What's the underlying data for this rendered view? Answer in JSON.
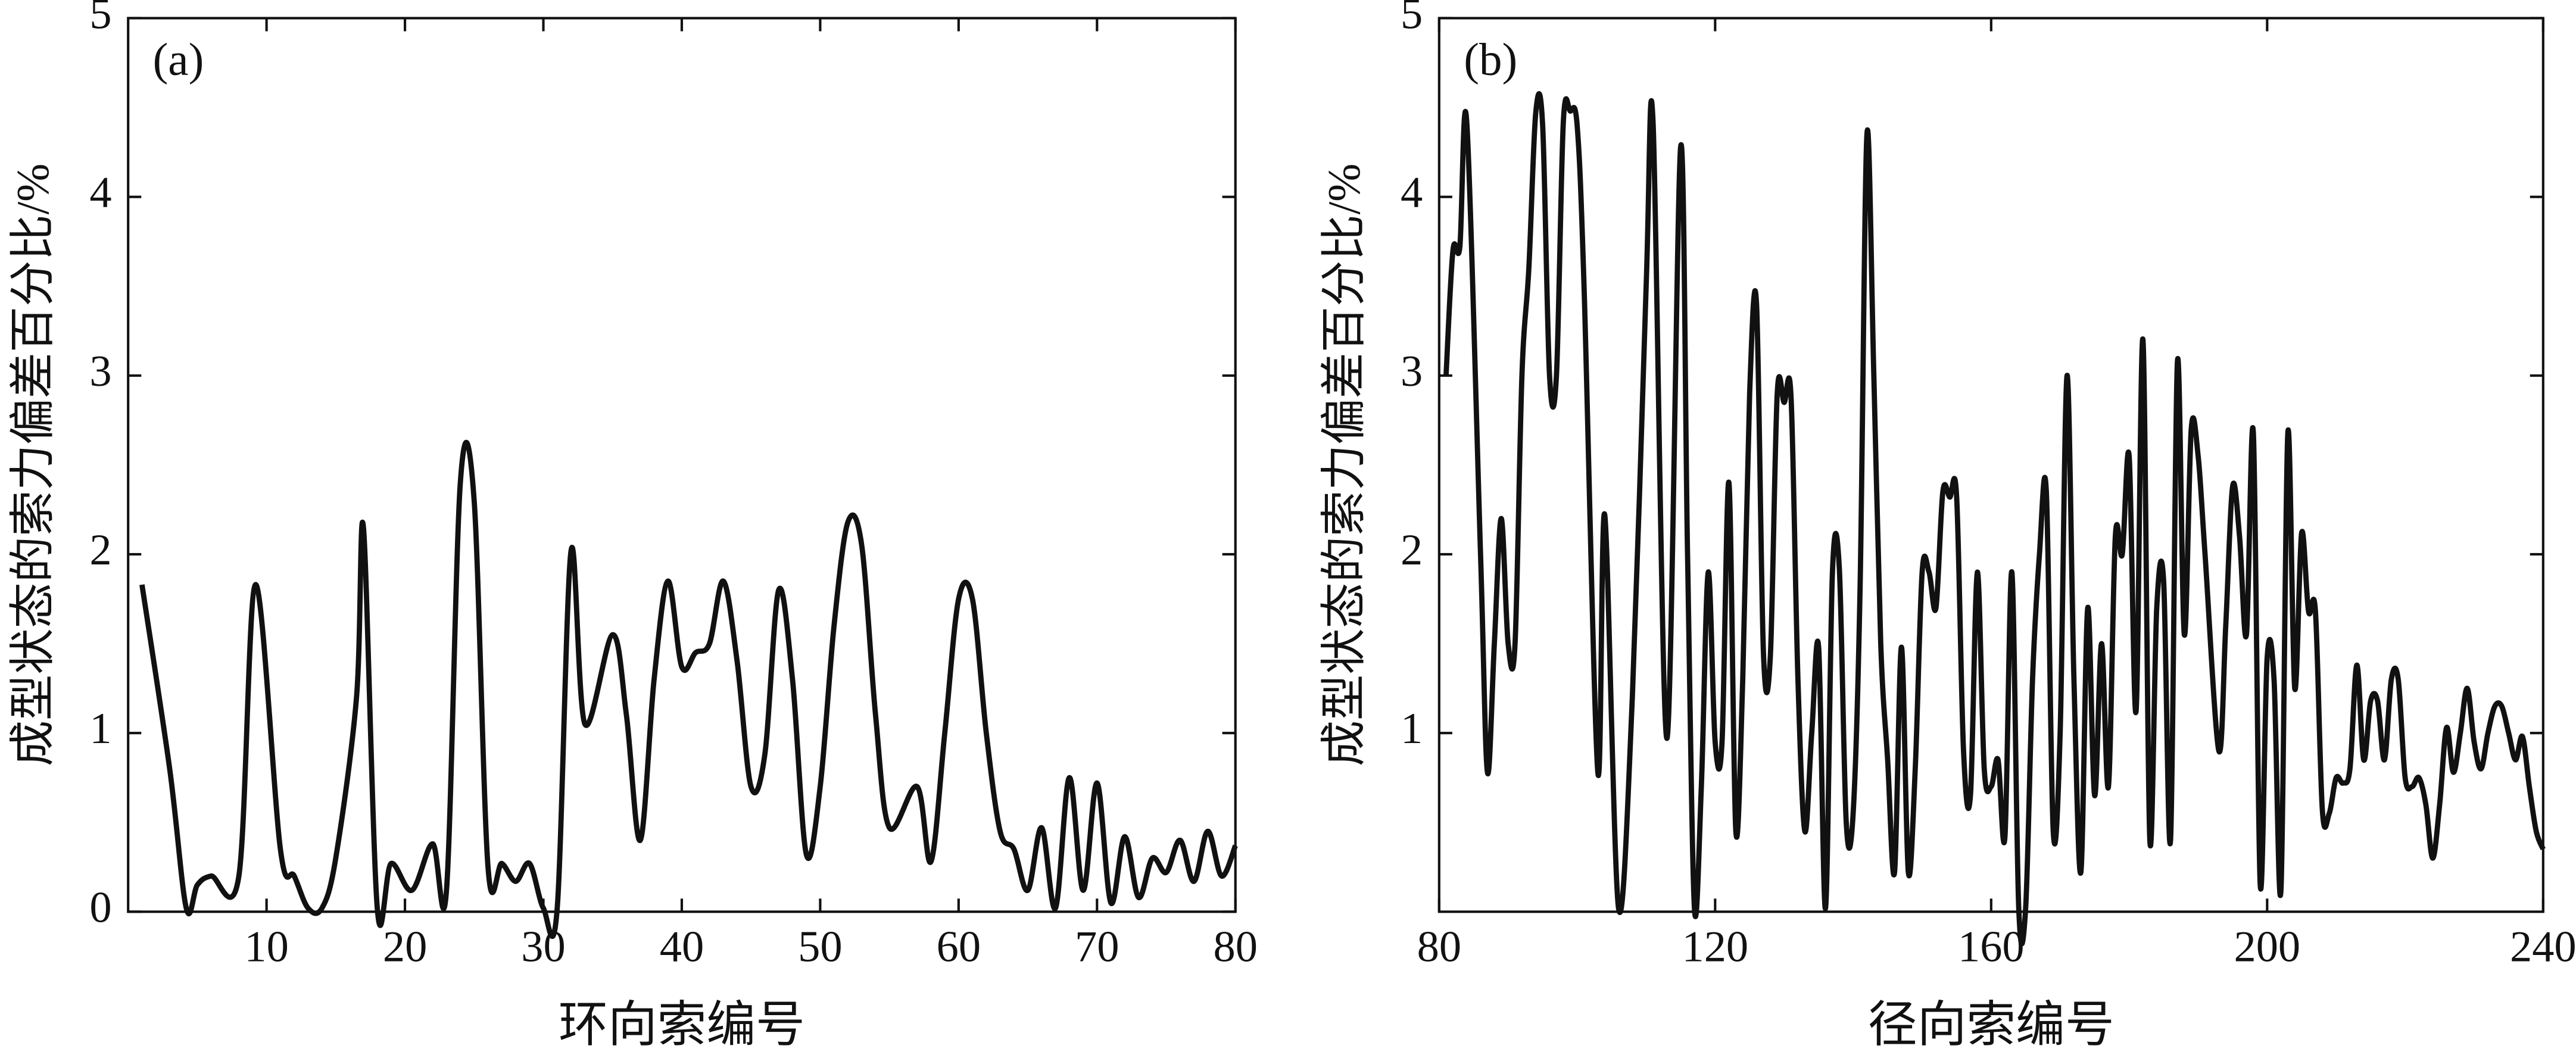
{
  "chart_data": [
    {
      "type": "line",
      "annotation": "(a)",
      "x_label": "环向索编号",
      "y_label": "成型状态的索力偏差百分比/%",
      "xlim": [
        0,
        80
      ],
      "ylim": [
        0,
        5
      ],
      "xticks": [
        10,
        20,
        30,
        40,
        50,
        60,
        70,
        80
      ],
      "yticks": [
        0,
        1,
        2,
        3,
        4,
        5
      ],
      "series": [
        {
          "color": "#111111",
          "x": [
            1,
            3,
            4.2,
            5,
            6,
            8,
            9.2,
            11,
            12,
            13,
            14,
            15,
            16.5,
            17,
            18,
            19,
            20.5,
            22,
            23,
            24,
            25,
            26,
            27,
            28,
            29,
            30,
            31,
            32,
            33,
            35,
            36,
            37,
            38,
            39,
            40,
            41,
            42,
            43,
            44,
            45,
            46,
            47,
            48,
            49,
            50,
            51,
            52,
            53,
            54,
            55,
            57,
            58,
            59,
            60,
            61,
            62,
            63,
            64,
            65,
            66,
            67,
            68,
            69,
            70,
            71,
            72,
            73,
            74,
            75,
            76,
            77,
            78,
            79,
            80
          ],
          "values": [
            1.83,
            0.8,
            0.02,
            0.15,
            0.2,
            0.2,
            1.83,
            0.35,
            0.2,
            0.02,
            0.02,
            0.3,
            1.2,
            2.15,
            0.02,
            0.27,
            0.12,
            0.38,
            0.12,
            2.4,
            2.3,
            0.25,
            0.27,
            0.17,
            0.27,
            0.02,
            0.02,
            2.02,
            1.05,
            1.55,
            1.1,
            0.4,
            1.3,
            1.85,
            1.37,
            1.45,
            1.5,
            1.85,
            1.4,
            0.7,
            0.88,
            1.8,
            1.3,
            0.32,
            0.7,
            1.6,
            2.18,
            2.05,
            1.1,
            0.47,
            0.7,
            0.28,
            1.0,
            1.75,
            1.75,
            1.0,
            0.45,
            0.35,
            0.12,
            0.47,
            0.02,
            0.75,
            0.12,
            0.72,
            0.05,
            0.42,
            0.08,
            0.3,
            0.22,
            0.4,
            0.17,
            0.45,
            0.2,
            0.37
          ]
        }
      ]
    },
    {
      "type": "line",
      "annotation": "(b)",
      "x_label": "径向索编号",
      "y_label": "成型状态的索力偏差百分比/%",
      "xlim": [
        80,
        240
      ],
      "ylim": [
        0,
        5
      ],
      "xticks": [
        80,
        120,
        160,
        200,
        240
      ],
      "yticks": [
        1,
        2,
        3,
        4,
        5
      ],
      "series": [
        {
          "color": "#111111",
          "x": [
            81,
            82,
            83,
            84,
            86,
            87,
            88,
            89,
            90,
            91,
            92,
            93,
            94,
            95,
            96,
            97,
            98,
            99,
            100,
            101,
            103,
            104,
            106,
            108,
            110,
            111,
            113,
            115,
            116,
            117,
            118,
            119,
            120,
            121,
            122,
            123,
            124,
            125,
            126,
            127,
            128,
            129,
            130,
            131,
            132,
            133,
            134,
            135,
            136,
            137,
            138,
            139,
            140,
            141,
            142,
            143,
            144,
            145,
            146,
            147,
            148,
            149,
            150,
            151,
            152,
            153,
            154,
            155,
            156,
            157,
            158,
            159,
            160,
            161,
            162,
            163,
            164,
            165,
            166,
            167,
            168,
            169,
            170,
            171,
            172,
            173,
            174,
            175,
            176,
            177,
            178,
            179,
            180,
            181,
            182,
            183,
            184,
            185,
            186,
            187,
            188,
            189,
            190,
            191,
            193,
            194,
            195,
            196,
            197,
            198,
            199,
            200,
            201,
            202,
            203,
            204,
            205,
            206,
            207,
            208,
            209,
            210,
            211,
            212,
            213,
            214,
            215,
            216,
            217,
            218,
            219,
            220,
            221,
            222,
            223,
            224,
            225,
            226,
            227,
            228,
            229,
            230,
            231,
            232,
            233,
            234,
            235,
            236,
            237,
            238,
            239,
            240
          ],
          "values": [
            3.0,
            3.7,
            3.72,
            4.42,
            2.0,
            0.78,
            1.5,
            2.2,
            1.5,
            1.5,
            3.0,
            3.6,
            4.47,
            4.4,
            3.0,
            3.0,
            4.42,
            4.48,
            4.4,
            3.5,
            0.78,
            2.22,
            0.02,
            1.2,
            3.5,
            4.42,
            0.97,
            4.28,
            2.0,
            0.02,
            0.7,
            1.9,
            0.95,
            0.95,
            2.4,
            0.45,
            1.3,
            2.9,
            3.4,
            1.45,
            1.43,
            2.9,
            2.85,
            2.88,
            1.3,
            0.45,
            1.0,
            1.48,
            0.02,
            1.9,
            1.92,
            0.5,
            0.55,
            1.8,
            4.35,
            3.0,
            1.5,
            0.85,
            0.22,
            1.48,
            0.22,
            0.8,
            1.9,
            1.9,
            1.7,
            2.35,
            2.32,
            2.32,
            0.9,
            0.65,
            1.9,
            0.8,
            0.7,
            0.85,
            0.42,
            1.9,
            0.02,
            0.02,
            1.3,
            2.0,
            2.35,
            0.45,
            1.0,
            3.0,
            1.3,
            0.22,
            1.7,
            0.65,
            1.5,
            0.7,
            2.1,
            2.0,
            2.55,
            1.12,
            3.2,
            0.4,
            1.7,
            1.85,
            0.4,
            3.08,
            1.55,
            2.7,
            2.55,
            2.0,
            0.9,
            1.6,
            2.38,
            2.1,
            1.55,
            2.68,
            0.15,
            1.42,
            1.3,
            0.12,
            2.68,
            1.25,
            2.12,
            1.68,
            1.68,
            0.57,
            0.55,
            0.75,
            0.72,
            0.8,
            1.38,
            0.85,
            1.18,
            1.18,
            0.85,
            1.3,
            1.3,
            0.75,
            0.7,
            0.75,
            0.6,
            0.3,
            0.6,
            1.03,
            0.78,
            1.0,
            1.25,
            0.95,
            0.8,
            1.0,
            1.15,
            1.15,
            1.0,
            0.85,
            0.98,
            0.7,
            0.45,
            0.35
          ]
        }
      ]
    }
  ]
}
